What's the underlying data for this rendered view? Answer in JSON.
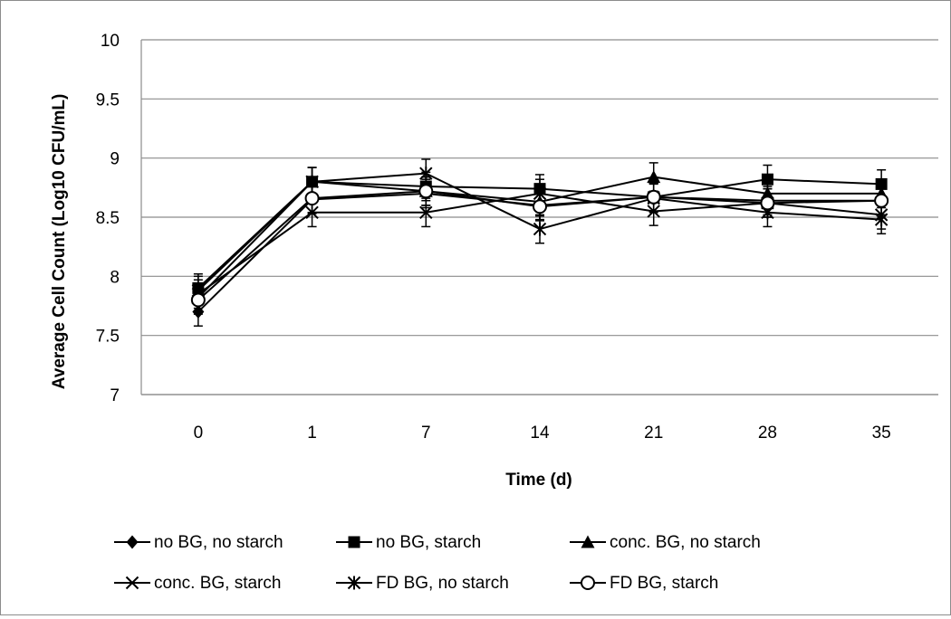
{
  "chart_data": {
    "type": "line",
    "title": "",
    "xlabel": "Time (d)",
    "ylabel": "Average Cell Count (Log10 CFU/mL)",
    "categories": [
      "0",
      "1",
      "7",
      "14",
      "21",
      "28",
      "35"
    ],
    "ylim": [
      7,
      10
    ],
    "yticks": [
      "7",
      "7.5",
      "8",
      "8.5",
      "9",
      "9.5",
      "10"
    ],
    "ytick_values": [
      7,
      7.5,
      8,
      8.5,
      9,
      9.5,
      10
    ],
    "grid": true,
    "legend_position": "bottom",
    "line_color": "#000000",
    "grid_color": "#8c8c8c",
    "series": [
      {
        "name": "no BG, no starch",
        "marker": "diamond",
        "values": [
          7.7,
          8.65,
          8.7,
          8.6,
          8.67,
          8.64,
          8.64
        ],
        "error": [
          0.12,
          0.12,
          0.12,
          0.12,
          0.12,
          0.12,
          0.12
        ]
      },
      {
        "name": "no BG, starch",
        "marker": "square",
        "values": [
          7.9,
          8.8,
          8.76,
          8.74,
          8.67,
          8.82,
          8.78
        ],
        "error": [
          0.12,
          0.12,
          0.12,
          0.12,
          0.12,
          0.12,
          0.12
        ]
      },
      {
        "name": "conc. BG, no starch",
        "marker": "triangle",
        "values": [
          7.82,
          8.8,
          8.72,
          8.63,
          8.84,
          8.7,
          8.7
        ],
        "error": [
          0.12,
          0.12,
          0.12,
          0.12,
          0.12,
          0.12,
          0.12
        ]
      },
      {
        "name": "conc. BG, starch",
        "marker": "x",
        "values": [
          7.85,
          8.54,
          8.54,
          8.7,
          8.55,
          8.62,
          8.52
        ],
        "error": [
          0.12,
          0.12,
          0.12,
          0.12,
          0.12,
          0.12,
          0.12
        ]
      },
      {
        "name": "FD BG, no starch",
        "marker": "asterisk",
        "values": [
          7.88,
          8.8,
          8.87,
          8.4,
          8.66,
          8.54,
          8.48
        ],
        "error": [
          0.12,
          0.12,
          0.12,
          0.12,
          0.12,
          0.12,
          0.12
        ]
      },
      {
        "name": "FD BG, starch",
        "marker": "circle",
        "values": [
          7.8,
          8.66,
          8.72,
          8.59,
          8.67,
          8.62,
          8.64
        ],
        "error": [
          0.12,
          0.12,
          0.12,
          0.12,
          0.12,
          0.12,
          0.12
        ]
      }
    ]
  }
}
